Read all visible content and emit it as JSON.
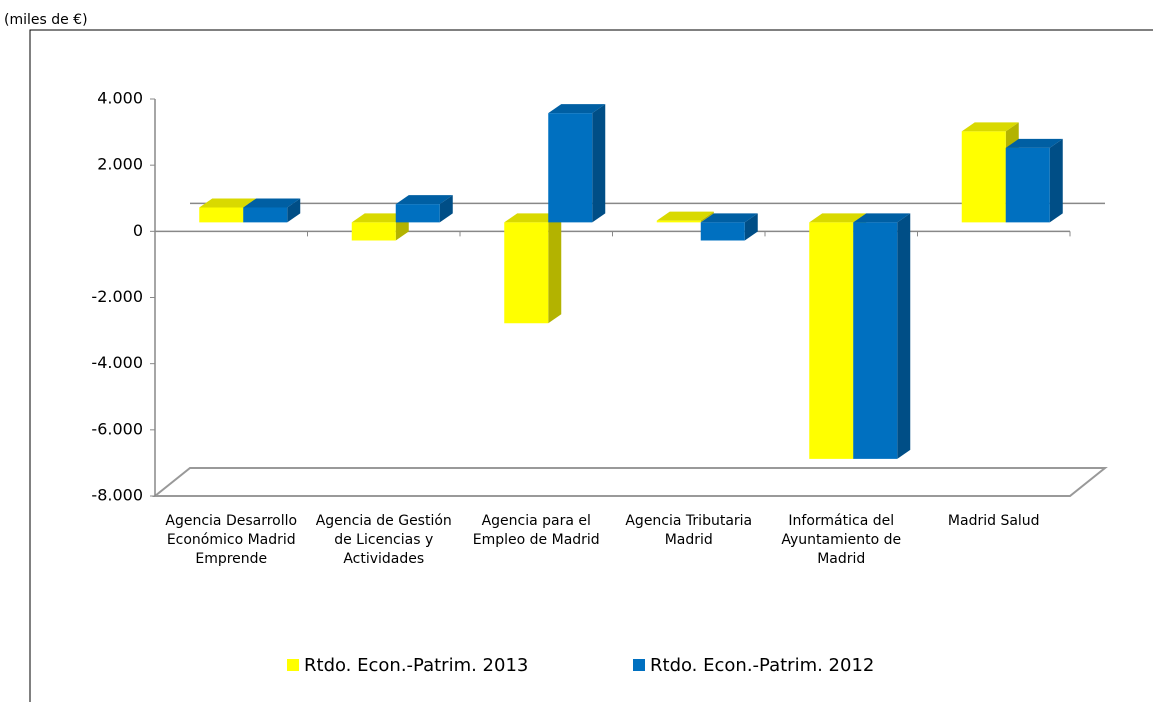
{
  "chart_data": {
    "type": "bar3d",
    "subtitle": "(miles de €)",
    "categories": [
      "Agencia Desarrollo Económico Madrid Emprende",
      "Agencia de Gestión de Licencias y Actividades",
      "Agencia para el Empleo de Madrid",
      "Agencia Tributaria Madrid",
      "Informática del Ayuntamiento de Madrid",
      "Madrid Salud"
    ],
    "series": [
      {
        "name": "Rtdo. Econ.-Patrim. 2013",
        "color": "#ffff00",
        "values": [
          450,
          -550,
          -3050,
          50,
          -7150,
          2750
        ]
      },
      {
        "name": "Rtdo. Econ.-Patrim. 2012",
        "color": "#0070c0",
        "values": [
          450,
          550,
          3300,
          -550,
          -7150,
          2250
        ]
      }
    ],
    "ylim": [
      -8000,
      4000
    ],
    "yticks": [
      {
        "value": -8000,
        "label": "-8.000"
      },
      {
        "value": -6000,
        "label": "-6.000"
      },
      {
        "value": -4000,
        "label": "-4.000"
      },
      {
        "value": -2000,
        "label": "-2.000"
      },
      0,
      {
        "value": 2000,
        "label": "2.000"
      },
      {
        "value": 4000,
        "label": "4.000"
      }
    ],
    "legend": "bottom"
  }
}
